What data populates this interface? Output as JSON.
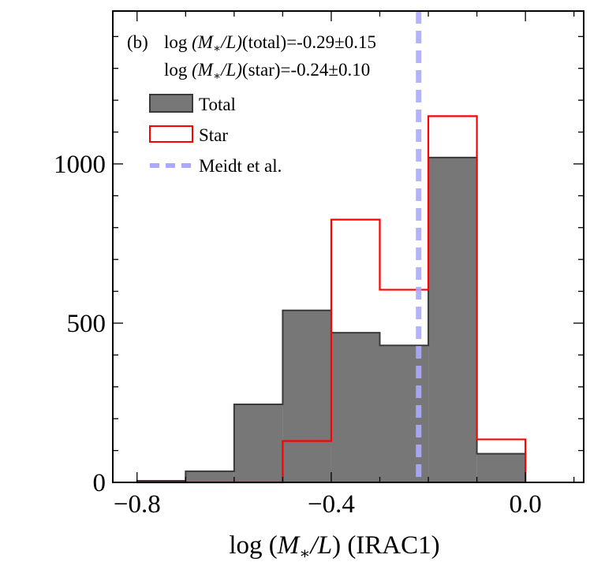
{
  "chart_data": {
    "type": "histogram",
    "panel_label": "(b)",
    "annotations": [
      {
        "prefix": "log ",
        "math": "(M",
        "sub": "∗",
        "math2": "/L)",
        "suffix": "(total)=-0.29±0.15"
      },
      {
        "prefix": "log ",
        "math": "(M",
        "sub": "∗",
        "math2": "/L)",
        "suffix": "(star)=-0.24±0.10"
      }
    ],
    "xlabel": {
      "prefix": "log (",
      "math": "M",
      "sub": "∗",
      "math2": "/L",
      "suffix": ") (IRAC1)"
    },
    "ylabel": "",
    "xlim": [
      -0.85,
      0.12
    ],
    "ylim": [
      0,
      1480
    ],
    "xticks": [
      -0.8,
      -0.4,
      0.0
    ],
    "xtick_labels": [
      "−0.8",
      "−0.4",
      "0.0"
    ],
    "yticks": [
      0,
      500,
      1000
    ],
    "ytick_labels": [
      "0",
      "500",
      "1000"
    ],
    "bin_edges": [
      -0.8,
      -0.7,
      -0.6,
      -0.5,
      -0.4,
      -0.3,
      -0.2,
      -0.1,
      0.0
    ],
    "series": [
      {
        "name": "Total",
        "style": "filled",
        "color": "#777777",
        "edge": "#3a3a3a",
        "values": [
          5,
          35,
          245,
          540,
          470,
          430,
          1020,
          90
        ]
      },
      {
        "name": "Star",
        "style": "step",
        "color": "#ff0000",
        "values": [
          0,
          0,
          0,
          130,
          825,
          605,
          1150,
          135
        ]
      }
    ],
    "vline": {
      "name": "Meidt et al.",
      "x": -0.22,
      "color": "#aaaaff",
      "style": "dashed"
    },
    "legend": [
      "Total",
      "Star",
      "Meidt et al."
    ],
    "legend_position": "upper-left"
  }
}
